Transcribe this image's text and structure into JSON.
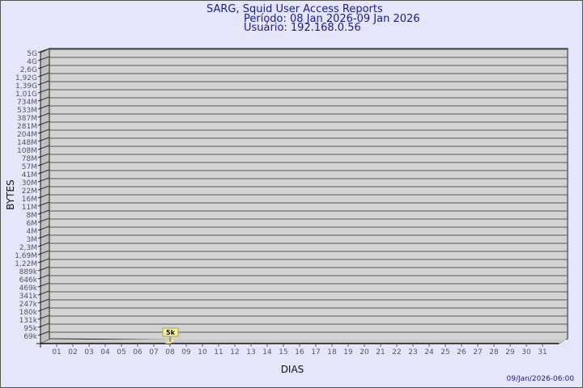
{
  "chart_data": {
    "type": "bar",
    "title": "SARG, Squid User Access Reports",
    "subtitle_period": "Período: 08 Jan 2026-09 Jan 2026",
    "subtitle_user": "Usuário: 192.168.0.56",
    "xlabel": "DIAS",
    "ylabel": "BYTES",
    "y_scale": "log",
    "y_tick_labels": [
      "5G",
      "4G",
      "2,6G",
      "1,92G",
      "1,39G",
      "1,01G",
      "734M",
      "533M",
      "387M",
      "281M",
      "204M",
      "148M",
      "108M",
      "78M",
      "57M",
      "41M",
      "30M",
      "22M",
      "16M",
      "11M",
      "8M",
      "6M",
      "4M",
      "3M",
      "2,3M",
      "1,69M",
      "1,22M",
      "889k",
      "646k",
      "469k",
      "341k",
      "247k",
      "180k",
      "131k",
      "95k",
      "69k"
    ],
    "categories": [
      "01",
      "02",
      "03",
      "04",
      "05",
      "06",
      "07",
      "08",
      "09",
      "10",
      "11",
      "12",
      "13",
      "14",
      "15",
      "16",
      "17",
      "18",
      "19",
      "20",
      "21",
      "22",
      "23",
      "24",
      "25",
      "26",
      "27",
      "28",
      "29",
      "30",
      "31"
    ],
    "bars": [
      {
        "category": "08",
        "value": 5000,
        "label": "5k"
      }
    ],
    "grid": true,
    "footer": "09/Jan/2026-06:00",
    "colors": {
      "background": "#e6e6fa",
      "plot": "#d3d3d3",
      "bar": "#f5e38a",
      "title": "#1a1a8c",
      "text": "#555555"
    }
  }
}
